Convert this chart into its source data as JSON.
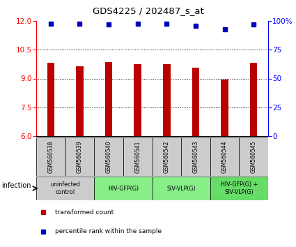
{
  "title": "GDS4225 / 202487_s_at",
  "samples": [
    "GSM560538",
    "GSM560539",
    "GSM560540",
    "GSM560541",
    "GSM560542",
    "GSM560543",
    "GSM560544",
    "GSM560545"
  ],
  "bar_values": [
    9.8,
    9.65,
    9.85,
    9.75,
    9.75,
    9.55,
    8.95,
    9.8
  ],
  "percentile_values": [
    97.5,
    97.5,
    97.0,
    97.5,
    97.5,
    96.0,
    93.0,
    97.0
  ],
  "bar_color": "#bb0000",
  "dot_color": "#0000bb",
  "ylim_left": [
    6,
    12
  ],
  "ylim_right": [
    0,
    100
  ],
  "yticks_left": [
    6,
    7.5,
    9,
    10.5,
    12
  ],
  "yticks_right": [
    0,
    25,
    50,
    75,
    100
  ],
  "groups": [
    {
      "label": "uninfected\ncontrol",
      "start": 0,
      "end": 2,
      "color": "#cccccc"
    },
    {
      "label": "HIV-GFP(G)",
      "start": 2,
      "end": 4,
      "color": "#88ee88"
    },
    {
      "label": "SIV-VLP(G)",
      "start": 4,
      "end": 6,
      "color": "#88ee88"
    },
    {
      "label": "HIV-GFP(G) +\nSIV-VLP(G)",
      "start": 6,
      "end": 8,
      "color": "#66dd66"
    }
  ],
  "sample_box_color": "#cccccc",
  "legend_red_label": "transformed count",
  "legend_blue_label": "percentile rank within the sample",
  "infection_label": "infection",
  "bar_width": 0.25
}
